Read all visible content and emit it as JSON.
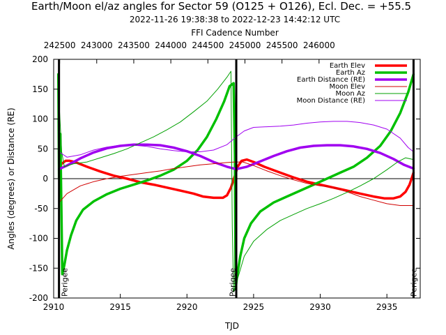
{
  "chart_data": {
    "type": "line",
    "title": "Earth/Moon el/az angles for Sector 59 (O125 + O126), Ecl. Dec. = +55.5",
    "subtitle": "2022-11-26 19:38:38 to 2022-12-23 14:42:12 UTC",
    "xlabel": "TJD",
    "ylabel": "Angles (degrees) or Distance (RE)",
    "x2label": "FFI Cadence Number",
    "xlim": [
      2910,
      2937.5
    ],
    "ylim": [
      -200,
      200
    ],
    "x_ticks": [
      "2910",
      "2915",
      "2920",
      "2925",
      "2930",
      "2935"
    ],
    "y_ticks": [
      "200",
      "150",
      "100",
      "50",
      "0",
      "-50",
      "-100",
      "-150",
      "-200"
    ],
    "x2_ticks": [
      {
        "label": "242500",
        "tjd": 2910.45
      },
      {
        "label": "243000",
        "tjd": 2913.23
      },
      {
        "label": "243500",
        "tjd": 2916.01
      },
      {
        "label": "244000",
        "tjd": 2918.79
      },
      {
        "label": "244500",
        "tjd": 2921.57
      },
      {
        "label": "245000",
        "tjd": 2924.35
      },
      {
        "label": "245500",
        "tjd": 2927.13
      },
      {
        "label": "246000",
        "tjd": 2929.91
      }
    ],
    "grid": false,
    "legend_position": "top-right",
    "zero_line": true,
    "vertical_lines": [
      2910.4,
      2923.7,
      2937.0
    ],
    "annotations": [
      {
        "text": "Perigee",
        "x": 2910.8
      },
      {
        "text": "Perigee",
        "x": 2923.4
      },
      {
        "text": "Perigee",
        "x": 2937.0
      }
    ],
    "series": [
      {
        "name": "Earth Elev",
        "color": "#ff0000",
        "width": "thick",
        "x": [
          2910.4,
          2910.6,
          2910.9,
          2911.2,
          2911.6,
          2912.5,
          2913.5,
          2914.5,
          2915.5,
          2916.5,
          2917.5,
          2918.5,
          2919.5,
          2920.5,
          2921.2,
          2922.0,
          2922.7,
          2923.0,
          2923.3,
          2923.6,
          2923.8,
          2924.1,
          2924.5,
          2925.0,
          2925.8,
          2927.0,
          2928.0,
          2929.0,
          2930.0,
          2931.0,
          2932.0,
          2933.0,
          2934.0,
          2934.8,
          2935.5,
          2936.0,
          2936.4,
          2936.7,
          2937.0
        ],
        "y": [
          15,
          25,
          30,
          30,
          28,
          20,
          12,
          5,
          0,
          -6,
          -10,
          -15,
          -20,
          -25,
          -30,
          -32,
          -32,
          -28,
          -15,
          5,
          20,
          30,
          32,
          28,
          20,
          10,
          2,
          -5,
          -10,
          -15,
          -20,
          -25,
          -30,
          -33,
          -33,
          -30,
          -22,
          -10,
          10
        ]
      },
      {
        "name": "Earth Az",
        "color": "#00c000",
        "width": "thick",
        "x": [
          2910.35,
          2910.4,
          2910.5,
          2910.65,
          2910.7,
          2910.8,
          2911.0,
          2911.3,
          2911.7,
          2912.2,
          2913.0,
          2914.0,
          2915.0,
          2916.0,
          2917.0,
          2918.0,
          2919.0,
          2920.0,
          2920.8,
          2921.5,
          2922.2,
          2922.8,
          2923.2,
          2923.5,
          2923.6,
          2923.65,
          2923.75,
          2924.0,
          2924.3,
          2924.8,
          2925.5,
          2926.5,
          2927.5,
          2928.5,
          2929.5,
          2930.5,
          2931.5,
          2932.5,
          2933.5,
          2934.5,
          2935.3,
          2936.0,
          2936.6,
          2937.0
        ],
        "y": [
          175,
          0,
          75,
          -160,
          -155,
          -145,
          -120,
          -95,
          -70,
          -52,
          -38,
          -26,
          -17,
          -10,
          -3,
          5,
          15,
          30,
          48,
          70,
          100,
          130,
          155,
          160,
          40,
          -185,
          -165,
          -130,
          -100,
          -75,
          -55,
          -40,
          -30,
          -20,
          -10,
          0,
          10,
          20,
          35,
          55,
          80,
          110,
          145,
          175
        ]
      },
      {
        "name": "Earth Distance (RE)",
        "color": "#a000f0",
        "width": "thick",
        "x": [
          2910.4,
          2911.0,
          2912.0,
          2913.0,
          2914.0,
          2915.0,
          2916.0,
          2917.0,
          2918.0,
          2919.0,
          2920.0,
          2921.0,
          2922.0,
          2923.0,
          2923.7,
          2924.5,
          2925.5,
          2926.5,
          2927.5,
          2928.5,
          2929.5,
          2930.5,
          2931.5,
          2932.5,
          2933.5,
          2934.5,
          2935.5,
          2936.3,
          2937.0
        ],
        "y": [
          16,
          22,
          34,
          44,
          51,
          55,
          57,
          57,
          56,
          52,
          46,
          38,
          28,
          20,
          16,
          20,
          29,
          38,
          46,
          52,
          55,
          56,
          56,
          54,
          50,
          43,
          33,
          23,
          17
        ]
      },
      {
        "name": "Moon Elev",
        "color": "#d00000",
        "width": "thin",
        "x": [
          2910.4,
          2911.0,
          2912.0,
          2913.0,
          2914.0,
          2915.0,
          2916.0,
          2917.0,
          2918.0,
          2919.0,
          2920.0,
          2921.0,
          2922.0,
          2923.0,
          2923.6,
          2924.2,
          2925.0,
          2926.0,
          2927.0,
          2928.0,
          2929.0,
          2930.0,
          2931.0,
          2932.0,
          2933.0,
          2934.0,
          2935.0,
          2936.0,
          2937.0
        ],
        "y": [
          -40,
          -25,
          -12,
          -5,
          0,
          4,
          7,
          10,
          13,
          17,
          20,
          23,
          25,
          27,
          28,
          28,
          22,
          13,
          5,
          -2,
          -8,
          -12,
          -15,
          -22,
          -30,
          -36,
          -42,
          -45,
          -45
        ]
      },
      {
        "name": "Moon Az",
        "color": "#00a000",
        "width": "thin",
        "x": [
          2910.4,
          2910.6,
          2910.8,
          2911.5,
          2912.5,
          2913.5,
          2914.5,
          2915.5,
          2916.5,
          2917.5,
          2918.5,
          2919.5,
          2920.5,
          2921.5,
          2922.3,
          2923.0,
          2923.3,
          2923.4,
          2923.5,
          2923.9,
          2924.3,
          2925.0,
          2926.0,
          2927.0,
          2928.0,
          2929.0,
          2930.0,
          2931.0,
          2932.0,
          2933.0,
          2934.0,
          2935.0,
          2935.8,
          2936.4,
          2937.0
        ],
        "y": [
          130,
          45,
          20,
          25,
          28,
          35,
          42,
          50,
          60,
          70,
          82,
          95,
          112,
          130,
          150,
          170,
          180,
          -80,
          -190,
          -160,
          -130,
          -105,
          -85,
          -70,
          -60,
          -50,
          -42,
          -33,
          -23,
          -12,
          0,
          15,
          28,
          35,
          32
        ]
      },
      {
        "name": "Moon Distance (RE)",
        "color": "#a000f0",
        "width": "thin",
        "x": [
          2910.4,
          2911.0,
          2912.0,
          2913.0,
          2914.0,
          2915.0,
          2916.0,
          2917.0,
          2918.0,
          2919.0,
          2920.0,
          2921.0,
          2922.0,
          2923.0,
          2923.7,
          2924.3,
          2925.0,
          2926.0,
          2927.0,
          2928.0,
          2929.0,
          2930.0,
          2931.0,
          2932.0,
          2933.0,
          2934.0,
          2935.0,
          2936.0,
          2936.6,
          2937.0
        ],
        "y": [
          45,
          36,
          40,
          48,
          53,
          56,
          56,
          54,
          50,
          47,
          45,
          45,
          48,
          57,
          70,
          80,
          86,
          87,
          88,
          90,
          93,
          95,
          96,
          96,
          94,
          90,
          83,
          68,
          52,
          45
        ]
      }
    ]
  }
}
